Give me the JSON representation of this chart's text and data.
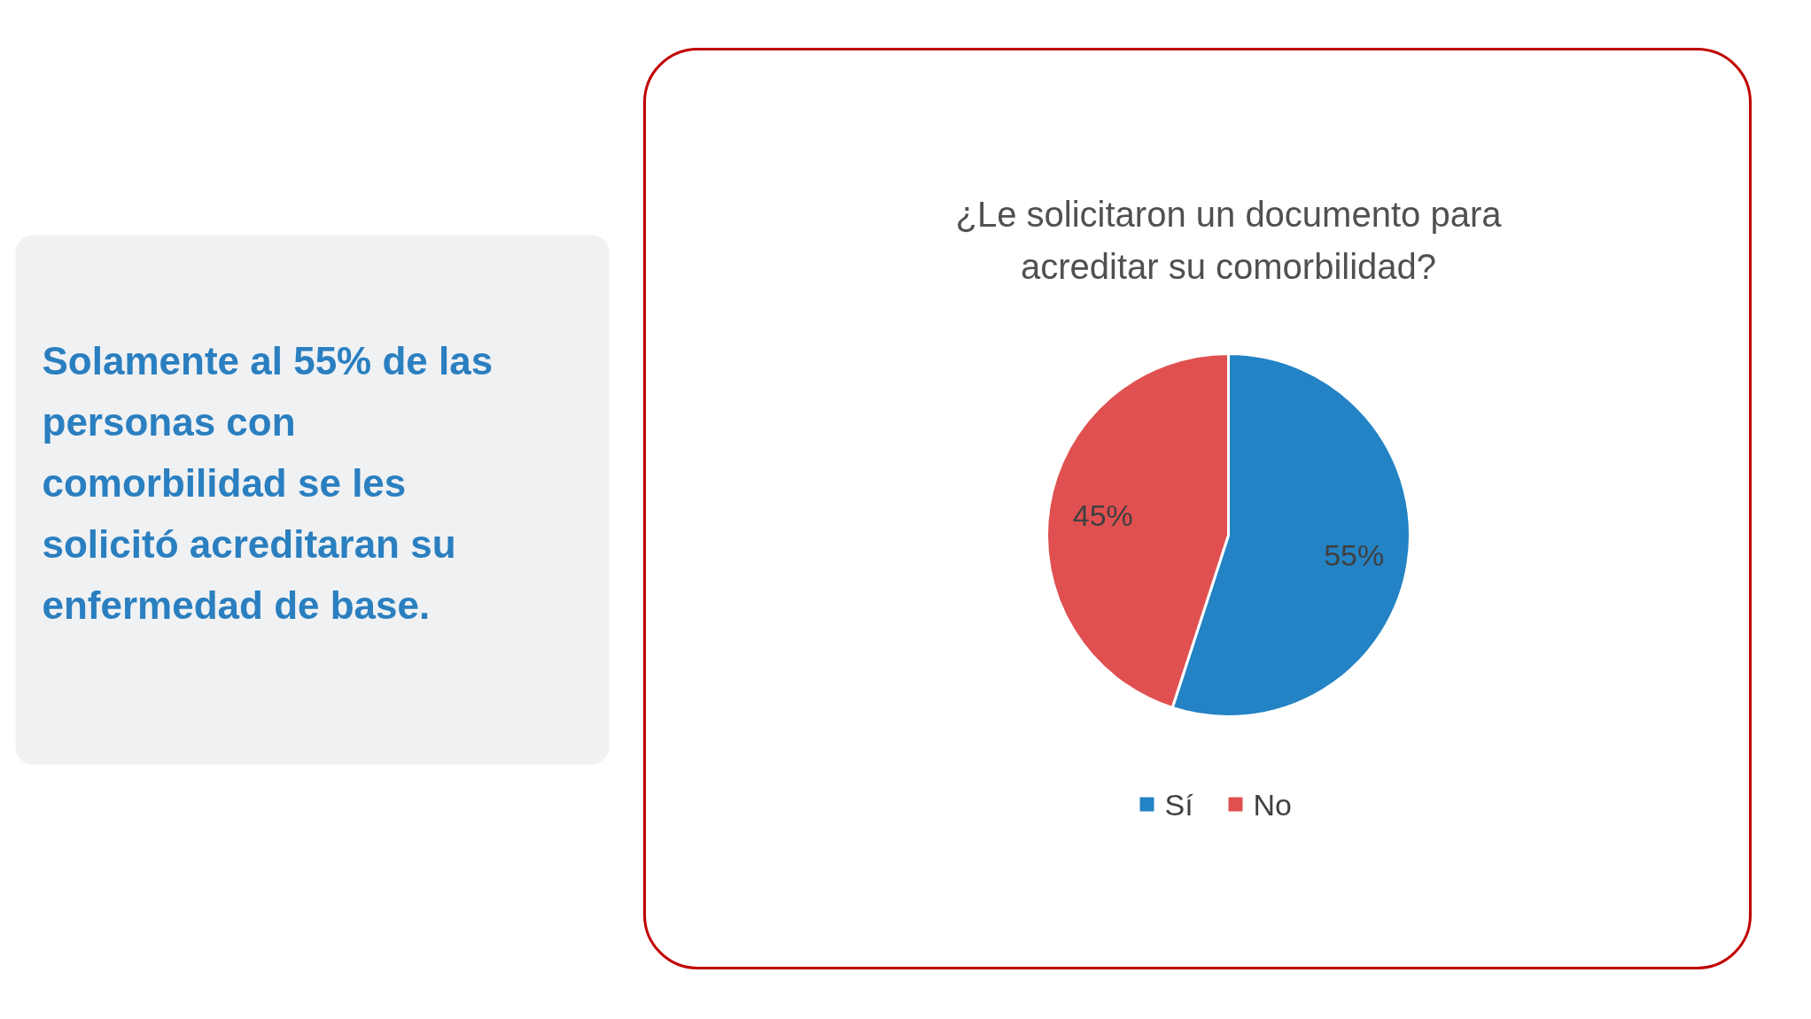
{
  "chart_data": {
    "type": "pie",
    "title": "¿Le solicitaron un documento para acreditar su comorbilidad?",
    "categories": [
      "Sí",
      "No"
    ],
    "values": [
      55,
      45
    ],
    "colors": [
      "#2383c4",
      "#e05050"
    ],
    "value_labels": [
      "55%",
      "45%"
    ],
    "legend": "bottom",
    "annotations": [
      "Solamente al 55% de las personas con comorbilidad se les solicitó acreditaran su enfermedad de base."
    ]
  }
}
